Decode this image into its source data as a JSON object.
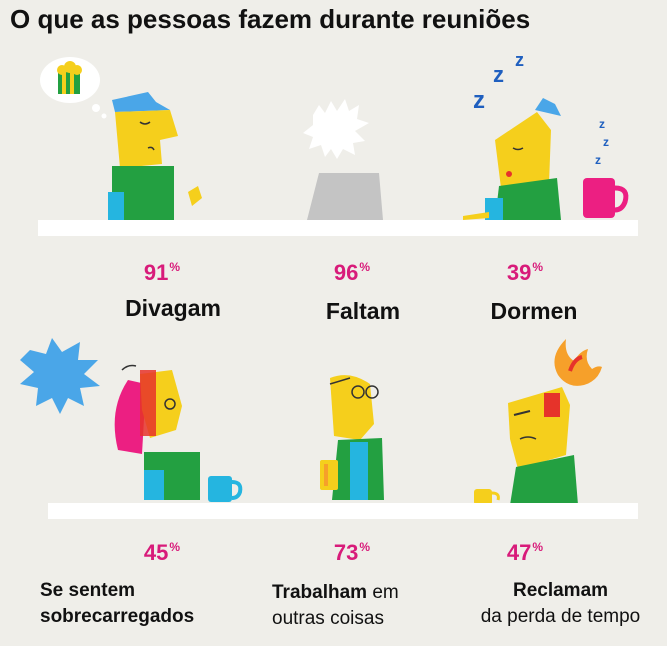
{
  "title": "O que as pessoas fazem durante reuniões",
  "percent_sign": "%",
  "items": [
    {
      "value": "91",
      "label": "Divagam"
    },
    {
      "value": "96",
      "label": "Faltam"
    },
    {
      "value": "39",
      "label": "Dormen"
    },
    {
      "value": "45",
      "label_bold": "Se sentem sobrecarregados",
      "label_bold_1": "Se sentem",
      "label_bold_2": "sobrecarregados"
    },
    {
      "value": "73",
      "label_bold": "Trabalham",
      "label_rest_1": " em",
      "label_rest_2": "outras coisas"
    },
    {
      "value": "47",
      "label_bold": "Reclamam",
      "label_rest": "da perda de tempo"
    }
  ],
  "colors": {
    "magenta": "#d81b7a",
    "yellow": "#f5cf1c",
    "green": "#23a041",
    "blue": "#4aa6e8",
    "cyan": "#25b5e0",
    "pink": "#ec1f82",
    "gray": "#c4c4c4",
    "red": "#e6332a",
    "orange": "#f6a02a"
  },
  "icons": [
    "popcorn-thought-icon",
    "sleep-z-icon",
    "coffee-mug-icon",
    "stress-burst-icon",
    "anger-fire-icon"
  ]
}
